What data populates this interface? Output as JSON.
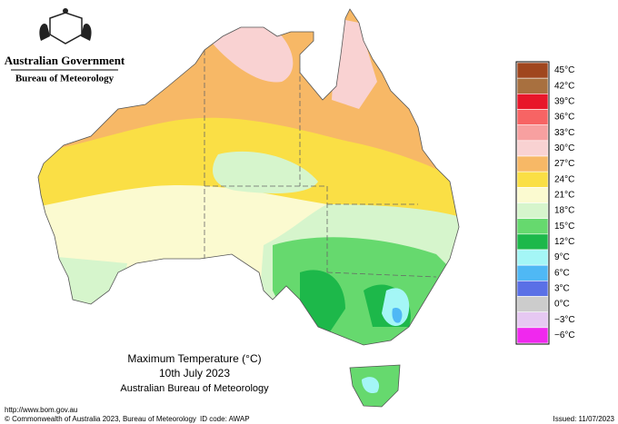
{
  "header": {
    "government": "Australian Government",
    "agency": "Bureau of Meteorology"
  },
  "map": {
    "title": "Maximum Temperature (°C)",
    "date": "10th July 2023",
    "source": "Australian Bureau of Meteorology"
  },
  "legend": [
    {
      "label": "45°C",
      "color": "#a0461e"
    },
    {
      "label": "42°C",
      "color": "#a8703f"
    },
    {
      "label": "39°C",
      "color": "#e8162a"
    },
    {
      "label": "36°C",
      "color": "#f76464"
    },
    {
      "label": "33°C",
      "color": "#f7a0a0"
    },
    {
      "label": "30°C",
      "color": "#f9d2d2"
    },
    {
      "label": "27°C",
      "color": "#f7b866"
    },
    {
      "label": "24°C",
      "color": "#fadf45"
    },
    {
      "label": "21°C",
      "color": "#fbfad0"
    },
    {
      "label": "18°C",
      "color": "#d6f5cc"
    },
    {
      "label": "15°C",
      "color": "#66d96e"
    },
    {
      "label": "12°C",
      "color": "#1db84a"
    },
    {
      "label": "9°C",
      "color": "#a4f6f6"
    },
    {
      "label": "6°C",
      "color": "#4fb8f5"
    },
    {
      "label": "3°C",
      "color": "#5a70e6"
    },
    {
      "label": "0°C",
      "color": "#cccccc"
    },
    {
      "label": "−3°C",
      "color": "#e6c8f2"
    },
    {
      "label": "−6°C",
      "color": "#f028ee"
    }
  ],
  "footer": {
    "url": "http://www.bom.gov.au",
    "copyright": "© Commonwealth of Australia 2023, Bureau of Meteorology",
    "id_code": "ID code: AWAP",
    "issued": "Issued: 11/07/2023"
  }
}
